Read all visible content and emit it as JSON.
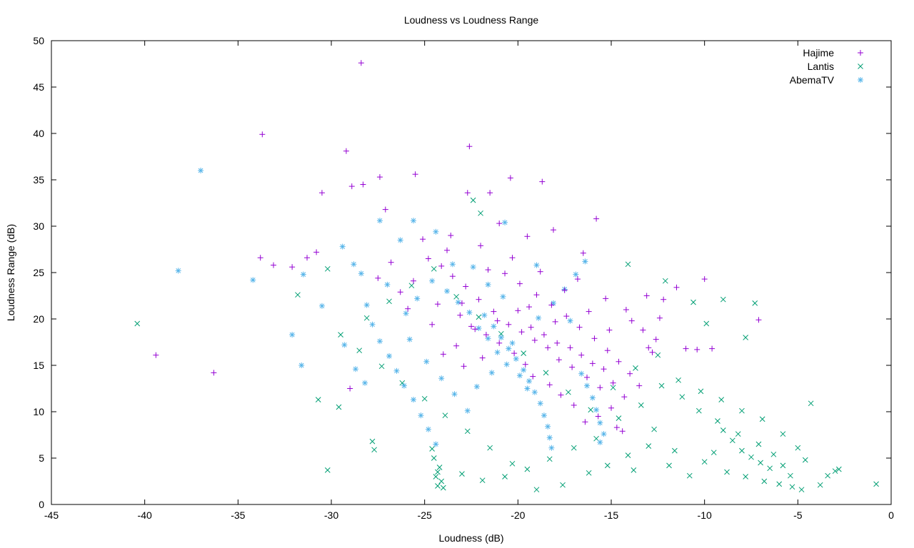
{
  "chart_data": {
    "type": "scatter",
    "title": "Loudness vs Loudness Range",
    "xlabel": "Loudness (dB)",
    "ylabel": "Loudness Range (dB)",
    "xlim": [
      -45,
      0
    ],
    "ylim": [
      0,
      50
    ],
    "xticks": [
      -45,
      -40,
      -35,
      -30,
      -25,
      -20,
      -15,
      -10,
      -5,
      0
    ],
    "yticks": [
      0,
      5,
      10,
      15,
      20,
      25,
      30,
      35,
      40,
      45,
      50
    ],
    "grid": false,
    "legend_position": "top-right",
    "series": [
      {
        "name": "Hajime",
        "marker": "plus",
        "color": "#9400d3",
        "points": [
          [
            -28.4,
            47.6
          ],
          [
            -33.7,
            39.9
          ],
          [
            -22.6,
            38.6
          ],
          [
            -29.2,
            38.1
          ],
          [
            -20.4,
            35.2
          ],
          [
            -25.5,
            35.6
          ],
          [
            -27.4,
            35.3
          ],
          [
            -28.9,
            34.3
          ],
          [
            -28.3,
            34.5
          ],
          [
            -30.5,
            33.6
          ],
          [
            -18.7,
            34.8
          ],
          [
            -22.7,
            33.6
          ],
          [
            -27.1,
            31.8
          ],
          [
            -21.5,
            33.6
          ],
          [
            -15.8,
            30.8
          ],
          [
            -33.8,
            26.6
          ],
          [
            -33.1,
            25.8
          ],
          [
            -32.1,
            25.6
          ],
          [
            -30.8,
            27.2
          ],
          [
            -31.3,
            26.6
          ],
          [
            -39.4,
            16.1
          ],
          [
            -36.3,
            14.2
          ],
          [
            -29.0,
            12.5
          ],
          [
            -10.0,
            24.3
          ],
          [
            -7.1,
            19.9
          ],
          [
            -13.9,
            19.8
          ],
          [
            -13.1,
            22.5
          ],
          [
            -12.2,
            22.1
          ],
          [
            -11.5,
            23.4
          ],
          [
            -12.4,
            20.1
          ],
          [
            -11.0,
            16.8
          ],
          [
            -10.4,
            16.7
          ],
          [
            -9.6,
            16.8
          ],
          [
            -12.8,
            16.4
          ],
          [
            -13.0,
            16.9
          ],
          [
            -23.6,
            29.0
          ],
          [
            -22.0,
            27.9
          ],
          [
            -21.0,
            30.3
          ],
          [
            -19.5,
            28.9
          ],
          [
            -18.1,
            29.6
          ],
          [
            -16.5,
            27.1
          ],
          [
            -24.8,
            26.5
          ],
          [
            -25.6,
            24.1
          ],
          [
            -26.3,
            22.9
          ],
          [
            -24.3,
            21.6
          ],
          [
            -23.1,
            20.4
          ],
          [
            -22.3,
            18.9
          ],
          [
            -21.1,
            19.8
          ],
          [
            -20.0,
            20.9
          ],
          [
            -19.3,
            19.1
          ],
          [
            -18.6,
            18.3
          ],
          [
            -17.9,
            17.4
          ],
          [
            -17.2,
            16.9
          ],
          [
            -16.6,
            16.1
          ],
          [
            -16.0,
            15.2
          ],
          [
            -15.4,
            14.6
          ],
          [
            -14.9,
            13.1
          ],
          [
            -15.6,
            12.6
          ],
          [
            -16.3,
            13.7
          ],
          [
            -17.1,
            14.8
          ],
          [
            -17.8,
            15.6
          ],
          [
            -18.4,
            16.9
          ],
          [
            -19.1,
            17.7
          ],
          [
            -19.8,
            18.6
          ],
          [
            -20.5,
            19.4
          ],
          [
            -21.3,
            20.8
          ],
          [
            -22.1,
            22.1
          ],
          [
            -22.8,
            23.5
          ],
          [
            -23.5,
            24.6
          ],
          [
            -24.1,
            25.7
          ],
          [
            -20.7,
            24.9
          ],
          [
            -19.9,
            23.8
          ],
          [
            -19.0,
            22.6
          ],
          [
            -18.2,
            21.5
          ],
          [
            -17.4,
            20.3
          ],
          [
            -16.7,
            19.1
          ],
          [
            -15.9,
            17.9
          ],
          [
            -15.2,
            16.6
          ],
          [
            -14.6,
            15.4
          ],
          [
            -14.0,
            14.1
          ],
          [
            -13.5,
            12.8
          ],
          [
            -14.3,
            11.6
          ],
          [
            -15.0,
            10.4
          ],
          [
            -15.7,
            9.5
          ],
          [
            -16.4,
            8.9
          ],
          [
            -14.7,
            8.3
          ],
          [
            -14.4,
            7.9
          ],
          [
            -17.0,
            10.7
          ],
          [
            -17.7,
            11.8
          ],
          [
            -18.3,
            12.9
          ],
          [
            -19.2,
            13.8
          ],
          [
            -19.6,
            15.1
          ],
          [
            -20.2,
            16.3
          ],
          [
            -21.0,
            17.4
          ],
          [
            -21.7,
            18.3
          ],
          [
            -22.5,
            19.2
          ],
          [
            -23.3,
            17.1
          ],
          [
            -24.0,
            16.2
          ],
          [
            -22.9,
            14.9
          ],
          [
            -21.9,
            15.8
          ],
          [
            -16.8,
            24.3
          ],
          [
            -15.3,
            22.2
          ],
          [
            -14.2,
            21.0
          ],
          [
            -13.3,
            18.8
          ],
          [
            -12.6,
            17.8
          ],
          [
            -18.8,
            25.1
          ],
          [
            -20.3,
            26.6
          ],
          [
            -21.6,
            25.3
          ],
          [
            -23.8,
            27.4
          ],
          [
            -25.1,
            28.6
          ],
          [
            -26.8,
            26.1
          ],
          [
            -27.5,
            24.4
          ],
          [
            -25.9,
            21.1
          ],
          [
            -24.6,
            19.4
          ],
          [
            -23.0,
            21.7
          ],
          [
            -15.1,
            18.8
          ],
          [
            -16.2,
            20.8
          ],
          [
            -17.5,
            23.1
          ],
          [
            -19.4,
            21.3
          ],
          [
            -18.0,
            19.7
          ]
        ]
      },
      {
        "name": "Lantis",
        "marker": "cross",
        "color": "#009e73",
        "points": [
          [
            -40.4,
            19.5
          ],
          [
            -30.2,
            3.7
          ],
          [
            -31.8,
            22.6
          ],
          [
            -29.6,
            10.5
          ],
          [
            -30.7,
            11.3
          ],
          [
            -30.2,
            25.4
          ],
          [
            -27.8,
            6.8
          ],
          [
            -27.7,
            5.9
          ],
          [
            -22.0,
            31.4
          ],
          [
            -22.4,
            32.8
          ],
          [
            -0.8,
            2.2
          ],
          [
            -2.8,
            3.8
          ],
          [
            -3.0,
            3.6
          ],
          [
            -4.3,
            10.9
          ],
          [
            -4.8,
            1.6
          ],
          [
            -9.0,
            22.1
          ],
          [
            -7.3,
            21.7
          ],
          [
            -9.9,
            19.5
          ],
          [
            -7.8,
            18.0
          ],
          [
            -10.6,
            21.8
          ],
          [
            -12.1,
            24.1
          ],
          [
            -14.1,
            25.9
          ],
          [
            -24.3,
            2.0
          ],
          [
            -24.4,
            3.0
          ],
          [
            -24.2,
            4.0
          ],
          [
            -24.5,
            5.0
          ],
          [
            -24.1,
            2.5
          ],
          [
            -24.3,
            3.5
          ],
          [
            -24.6,
            6.0
          ],
          [
            -24.0,
            1.8
          ],
          [
            -9.0,
            8.0
          ],
          [
            -8.5,
            6.9
          ],
          [
            -8.0,
            5.8
          ],
          [
            -7.5,
            5.1
          ],
          [
            -7.0,
            4.5
          ],
          [
            -6.5,
            3.9
          ],
          [
            -9.5,
            5.6
          ],
          [
            -10.0,
            4.6
          ],
          [
            -8.8,
            3.5
          ],
          [
            -7.8,
            3.0
          ],
          [
            -6.8,
            2.5
          ],
          [
            -6.0,
            2.2
          ],
          [
            -5.4,
            3.1
          ],
          [
            -5.8,
            4.2
          ],
          [
            -6.3,
            5.4
          ],
          [
            -7.1,
            6.5
          ],
          [
            -8.2,
            7.6
          ],
          [
            -9.3,
            9.0
          ],
          [
            -10.3,
            10.1
          ],
          [
            -11.2,
            11.6
          ],
          [
            -12.3,
            12.8
          ],
          [
            -13.4,
            10.7
          ],
          [
            -14.6,
            9.3
          ],
          [
            -15.8,
            7.1
          ],
          [
            -17.0,
            6.1
          ],
          [
            -18.3,
            4.9
          ],
          [
            -19.5,
            3.8
          ],
          [
            -20.7,
            3.0
          ],
          [
            -21.9,
            2.6
          ],
          [
            -23.0,
            3.3
          ],
          [
            -16.2,
            3.4
          ],
          [
            -15.2,
            4.2
          ],
          [
            -14.1,
            5.3
          ],
          [
            -13.0,
            6.3
          ],
          [
            -11.9,
            4.2
          ],
          [
            -10.8,
            3.1
          ],
          [
            -11.6,
            5.8
          ],
          [
            -12.7,
            8.1
          ],
          [
            -13.8,
            3.7
          ],
          [
            -17.6,
            2.1
          ],
          [
            -19.0,
            1.6
          ],
          [
            -20.3,
            4.4
          ],
          [
            -21.5,
            6.1
          ],
          [
            -22.7,
            7.9
          ],
          [
            -23.9,
            9.6
          ],
          [
            -25.0,
            11.4
          ],
          [
            -26.2,
            13.1
          ],
          [
            -27.3,
            14.9
          ],
          [
            -28.5,
            16.6
          ],
          [
            -29.5,
            18.3
          ],
          [
            -28.1,
            20.1
          ],
          [
            -26.9,
            21.9
          ],
          [
            -25.7,
            23.6
          ],
          [
            -24.5,
            25.4
          ],
          [
            -23.3,
            22.4
          ],
          [
            -22.1,
            20.2
          ],
          [
            -20.9,
            18.4
          ],
          [
            -19.7,
            16.3
          ],
          [
            -18.5,
            14.2
          ],
          [
            -17.3,
            12.1
          ],
          [
            -16.1,
            10.2
          ],
          [
            -14.9,
            12.6
          ],
          [
            -13.7,
            14.7
          ],
          [
            -12.5,
            16.1
          ],
          [
            -11.4,
            13.4
          ],
          [
            -10.2,
            12.2
          ],
          [
            -9.1,
            11.3
          ],
          [
            -8.0,
            10.1
          ],
          [
            -6.9,
            9.2
          ],
          [
            -5.8,
            7.6
          ],
          [
            -5.0,
            6.1
          ],
          [
            -4.6,
            4.8
          ],
          [
            -3.8,
            2.1
          ],
          [
            -3.4,
            3.1
          ],
          [
            -5.3,
            1.9
          ]
        ]
      },
      {
        "name": "AbemaTV",
        "marker": "star",
        "color": "#56b4e9",
        "points": [
          [
            -37.0,
            36.0
          ],
          [
            -38.2,
            25.2
          ],
          [
            -34.2,
            24.2
          ],
          [
            -31.5,
            24.8
          ],
          [
            -32.1,
            18.3
          ],
          [
            -31.6,
            15.0
          ],
          [
            -30.5,
            21.4
          ],
          [
            -29.4,
            27.8
          ],
          [
            -28.8,
            25.9
          ],
          [
            -27.4,
            30.6
          ],
          [
            -25.6,
            30.6
          ],
          [
            -20.7,
            30.4
          ],
          [
            -26.3,
            28.5
          ],
          [
            -24.4,
            29.4
          ],
          [
            -23.5,
            25.9
          ],
          [
            -28.1,
            21.5
          ],
          [
            -27.8,
            19.4
          ],
          [
            -27.4,
            17.6
          ],
          [
            -26.9,
            16.0
          ],
          [
            -26.5,
            14.4
          ],
          [
            -26.1,
            12.8
          ],
          [
            -25.6,
            11.3
          ],
          [
            -25.2,
            9.6
          ],
          [
            -24.8,
            8.1
          ],
          [
            -24.4,
            6.5
          ],
          [
            -21.8,
            20.4
          ],
          [
            -21.3,
            19.2
          ],
          [
            -20.9,
            18.0
          ],
          [
            -20.5,
            16.8
          ],
          [
            -20.1,
            15.7
          ],
          [
            -19.7,
            14.5
          ],
          [
            -19.4,
            13.3
          ],
          [
            -19.1,
            12.1
          ],
          [
            -18.8,
            10.9
          ],
          [
            -18.6,
            9.6
          ],
          [
            -18.4,
            8.4
          ],
          [
            -18.3,
            7.2
          ],
          [
            -18.2,
            6.1
          ],
          [
            -20.3,
            17.4
          ],
          [
            -20.6,
            15.1
          ],
          [
            -21.1,
            16.4
          ],
          [
            -21.6,
            17.9
          ],
          [
            -22.1,
            19.0
          ],
          [
            -22.6,
            20.7
          ],
          [
            -19.9,
            13.9
          ],
          [
            -19.5,
            12.5
          ],
          [
            -16.3,
            12.8
          ],
          [
            -16.0,
            11.5
          ],
          [
            -15.8,
            10.2
          ],
          [
            -15.6,
            8.8
          ],
          [
            -15.4,
            7.6
          ],
          [
            -15.6,
            6.7
          ],
          [
            -16.6,
            14.1
          ],
          [
            -23.2,
            21.8
          ],
          [
            -23.8,
            23.0
          ],
          [
            -24.6,
            24.1
          ],
          [
            -25.4,
            22.2
          ],
          [
            -26.0,
            20.6
          ],
          [
            -27.0,
            23.7
          ],
          [
            -28.4,
            24.9
          ],
          [
            -22.4,
            25.6
          ],
          [
            -21.6,
            23.7
          ],
          [
            -20.8,
            22.4
          ],
          [
            -19.0,
            25.8
          ],
          [
            -17.2,
            19.8
          ],
          [
            -16.4,
            26.2
          ],
          [
            -16.9,
            24.8
          ],
          [
            -17.5,
            23.2
          ],
          [
            -18.1,
            21.7
          ],
          [
            -18.9,
            20.1
          ],
          [
            -25.8,
            17.8
          ],
          [
            -24.9,
            15.4
          ],
          [
            -24.1,
            13.6
          ],
          [
            -23.4,
            11.9
          ],
          [
            -22.7,
            10.1
          ],
          [
            -22.2,
            12.7
          ],
          [
            -21.4,
            14.2
          ],
          [
            -29.3,
            17.2
          ],
          [
            -28.7,
            14.6
          ],
          [
            -28.2,
            13.1
          ]
        ]
      }
    ]
  }
}
